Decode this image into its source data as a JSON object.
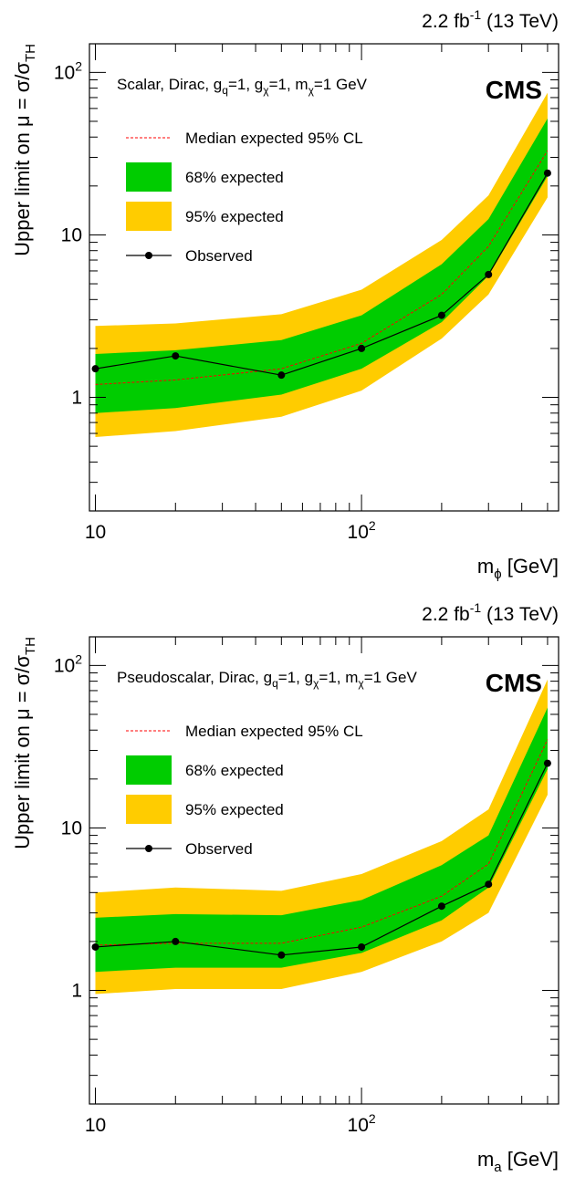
{
  "chart_data": [
    {
      "type": "line",
      "lumi": "2.2 fb",
      "lumi_sup": "-1",
      "energy": "(13 TeV)",
      "experiment": "CMS",
      "model": {
        "name": "Scalar, Dirac, g",
        "sub1": "q",
        "mid1": "=1, g",
        "sub2": "χ",
        "mid2": "=1, m",
        "sub3": "χ",
        "tail": "=1 GeV"
      },
      "ylabel": "Upper limit on μ = σ/σ",
      "ylabel_sub": "TH",
      "xlabel": "m",
      "xlabel_sub": "ϕ",
      "xlabel_unit": " [GeV]",
      "x_scale": "log",
      "y_scale": "log",
      "xlim": [
        9.5,
        550
      ],
      "ylim": [
        0.2,
        150
      ],
      "x_ticks": [
        {
          "v": 10,
          "base": "10",
          "exp": ""
        },
        {
          "v": 100,
          "base": "10",
          "exp": "2"
        }
      ],
      "y_ticks": [
        {
          "v": 1,
          "base": "1",
          "exp": ""
        },
        {
          "v": 10,
          "base": "10",
          "exp": ""
        },
        {
          "v": 100,
          "base": "10",
          "exp": "2"
        }
      ],
      "legend": {
        "position": "top-left",
        "median": "Median expected 95% CL",
        "band68": "68% expected",
        "band95": "95% expected",
        "observed": "Observed"
      },
      "colors": {
        "band95": "#ffcc00",
        "band68": "#00cc00",
        "median": "#ff0000",
        "observed": "#000000"
      },
      "x": [
        10,
        20,
        50,
        100,
        200,
        300,
        500
      ],
      "median": [
        1.2,
        1.28,
        1.5,
        2.15,
        4.3,
        8.5,
        33
      ],
      "band68": {
        "lo": [
          0.8,
          0.86,
          1.04,
          1.5,
          2.9,
          5.6,
          23
        ],
        "hi": [
          1.85,
          1.95,
          2.25,
          3.2,
          6.6,
          12.5,
          52
        ]
      },
      "band95": {
        "lo": [
          0.57,
          0.62,
          0.76,
          1.1,
          2.3,
          4.3,
          17
        ],
        "hi": [
          2.75,
          2.85,
          3.25,
          4.6,
          9.3,
          17.5,
          75
        ]
      },
      "observed": [
        1.5,
        1.8,
        1.37,
        2.0,
        3.2,
        5.7,
        24
      ]
    },
    {
      "type": "line",
      "lumi": "2.2 fb",
      "lumi_sup": "-1",
      "energy": "(13 TeV)",
      "experiment": "CMS",
      "model": {
        "name": "Pseudoscalar, Dirac, g",
        "sub1": "q",
        "mid1": "=1, g",
        "sub2": "χ",
        "mid2": "=1, m",
        "sub3": "χ",
        "tail": "=1 GeV"
      },
      "ylabel": "Upper limit on μ = σ/σ",
      "ylabel_sub": "TH",
      "xlabel": "m",
      "xlabel_sub": "a",
      "xlabel_unit": " [GeV]",
      "x_scale": "log",
      "y_scale": "log",
      "xlim": [
        9.5,
        550
      ],
      "ylim": [
        0.2,
        150
      ],
      "x_ticks": [
        {
          "v": 10,
          "base": "10",
          "exp": ""
        },
        {
          "v": 100,
          "base": "10",
          "exp": "2"
        }
      ],
      "y_ticks": [
        {
          "v": 1,
          "base": "1",
          "exp": ""
        },
        {
          "v": 10,
          "base": "10",
          "exp": ""
        },
        {
          "v": 100,
          "base": "10",
          "exp": "2"
        }
      ],
      "legend": {
        "position": "top-left",
        "median": "Median expected 95% CL",
        "band68": "68% expected",
        "band95": "95% expected",
        "observed": "Observed"
      },
      "colors": {
        "band95": "#ffcc00",
        "band68": "#00cc00",
        "median": "#ff0000",
        "observed": "#000000"
      },
      "x": [
        10,
        20,
        50,
        100,
        200,
        300,
        500
      ],
      "median": [
        1.9,
        1.95,
        1.95,
        2.45,
        3.8,
        6.0,
        35
      ],
      "band68": {
        "lo": [
          1.3,
          1.38,
          1.38,
          1.7,
          2.7,
          4.3,
          23
        ],
        "hi": [
          2.8,
          2.95,
          2.9,
          3.6,
          5.9,
          9.0,
          55
        ]
      },
      "band95": {
        "lo": [
          0.95,
          1.02,
          1.02,
          1.3,
          2.0,
          3.0,
          16
        ],
        "hi": [
          4.0,
          4.3,
          4.1,
          5.2,
          8.3,
          13,
          82
        ]
      },
      "observed": [
        1.85,
        2.0,
        1.65,
        1.85,
        3.3,
        4.5,
        25
      ]
    }
  ]
}
